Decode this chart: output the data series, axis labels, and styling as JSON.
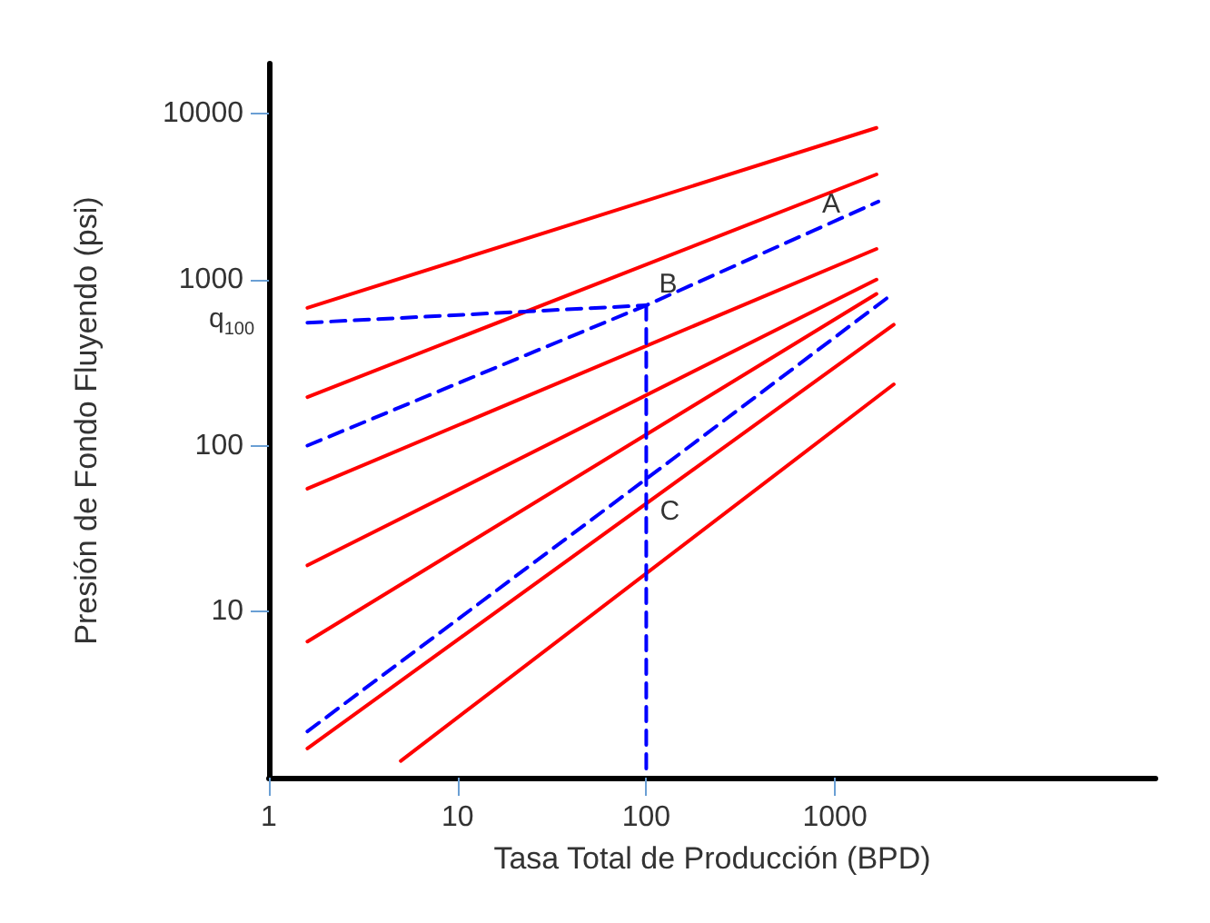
{
  "chart_data": {
    "type": "line",
    "xlabel": "Tasa Total de Producción (BPD)",
    "ylabel": "Presión de Fondo Fluyendo (psi)",
    "log": "xy",
    "grid": false,
    "marker": "none",
    "xlim": [
      1,
      50000
    ],
    "ylim": [
      1,
      20000
    ],
    "xticks": [
      1,
      10,
      100,
      1000
    ],
    "yticks": [
      10,
      100,
      1000,
      10000
    ],
    "series": [
      {
        "color": "#ff0000",
        "line_style": "solid",
        "x": [
          1.6,
          1660
        ],
        "values": [
          676,
          8200
        ]
      },
      {
        "color": "#ff0000",
        "line_style": "solid",
        "x": [
          1.6,
          1660
        ],
        "values": [
          196,
          4300
        ]
      },
      {
        "color": "#ff0000",
        "line_style": "solid",
        "x": [
          1.6,
          1660
        ],
        "values": [
          55,
          1530
        ]
      },
      {
        "color": "#ff0000",
        "line_style": "solid",
        "x": [
          1.6,
          1660
        ],
        "values": [
          19,
          1000
        ]
      },
      {
        "color": "#ff0000",
        "line_style": "solid",
        "x": [
          1.6,
          1660
        ],
        "values": [
          6.6,
          820
        ]
      },
      {
        "color": "#ff0000",
        "line_style": "solid",
        "x": [
          1.6,
          2050
        ],
        "values": [
          1.5,
          535
        ]
      },
      {
        "color": "#ff0000",
        "line_style": "solid",
        "x": [
          5,
          2050
        ],
        "values": [
          1.26,
          234
        ]
      },
      {
        "color": "#0000ff",
        "line_style": "dashed",
        "x": [
          1.6,
          100,
          1700
        ],
        "values": [
          100,
          700,
          2950
        ]
      },
      {
        "color": "#0000ff",
        "line_style": "dashed",
        "x": [
          1.6,
          100
        ],
        "values": [
          550,
          700
        ]
      },
      {
        "color": "#0000ff",
        "line_style": "dashed",
        "x": [
          100,
          100
        ],
        "values": [
          700,
          1
        ]
      },
      {
        "color": "#0000ff",
        "line_style": "dashed",
        "x": [
          1.6,
          100,
          2050
        ],
        "values": [
          1.9,
          63,
          830
        ]
      }
    ],
    "annotations": [
      {
        "text": "A",
        "x": 1000,
        "y": 2250
      },
      {
        "text": "B",
        "x": 100,
        "y": 700
      },
      {
        "text": "C",
        "x": 100,
        "y": 63
      },
      {
        "text": "q$_{100}$",
        "x": 1.6,
        "y": 550
      }
    ]
  }
}
